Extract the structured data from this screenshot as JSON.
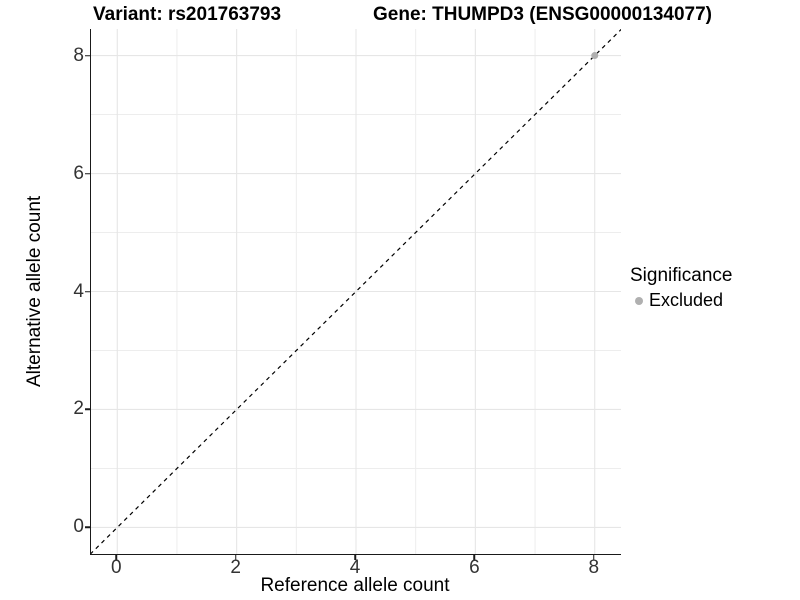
{
  "titles": {
    "variant": "Variant: rs201763793",
    "gene": "Gene: THUMPD3 (ENSG00000134077)"
  },
  "legend": {
    "title": "Significance",
    "items": [
      {
        "label": "Excluded",
        "color": "#b0b0b0"
      }
    ]
  },
  "chart_data": {
    "type": "scatter",
    "title": "Variant: rs201763793 / Gene: THUMPD3 (ENSG00000134077)",
    "xlabel": "Reference allele count",
    "ylabel": "Alternative allele count",
    "xlim": [
      -0.44,
      8.44
    ],
    "ylim": [
      -0.45,
      8.45
    ],
    "x_ticks": [
      0,
      2,
      4,
      6,
      8
    ],
    "y_ticks": [
      0,
      2,
      4,
      6,
      8
    ],
    "x_minor_ticks": [
      1,
      3,
      5,
      7
    ],
    "y_minor_ticks": [
      1,
      3,
      5,
      7
    ],
    "grid": "major and minor, light gray on white panel",
    "legend_position": "right",
    "series": [
      {
        "name": "Excluded",
        "color": "#b0b0b0",
        "points": [
          [
            8,
            8
          ]
        ]
      }
    ],
    "reference_line": {
      "type": "identity y=x",
      "style": "dashed",
      "color": "#000000"
    }
  },
  "colors": {
    "background": "#ffffff",
    "grid_major": "#e6e6e6",
    "grid_minor": "#ededed",
    "axis_line": "#1a1a1a",
    "tick_text": "#333333",
    "point": "#b0b0b0",
    "dashed_line": "#000000"
  }
}
